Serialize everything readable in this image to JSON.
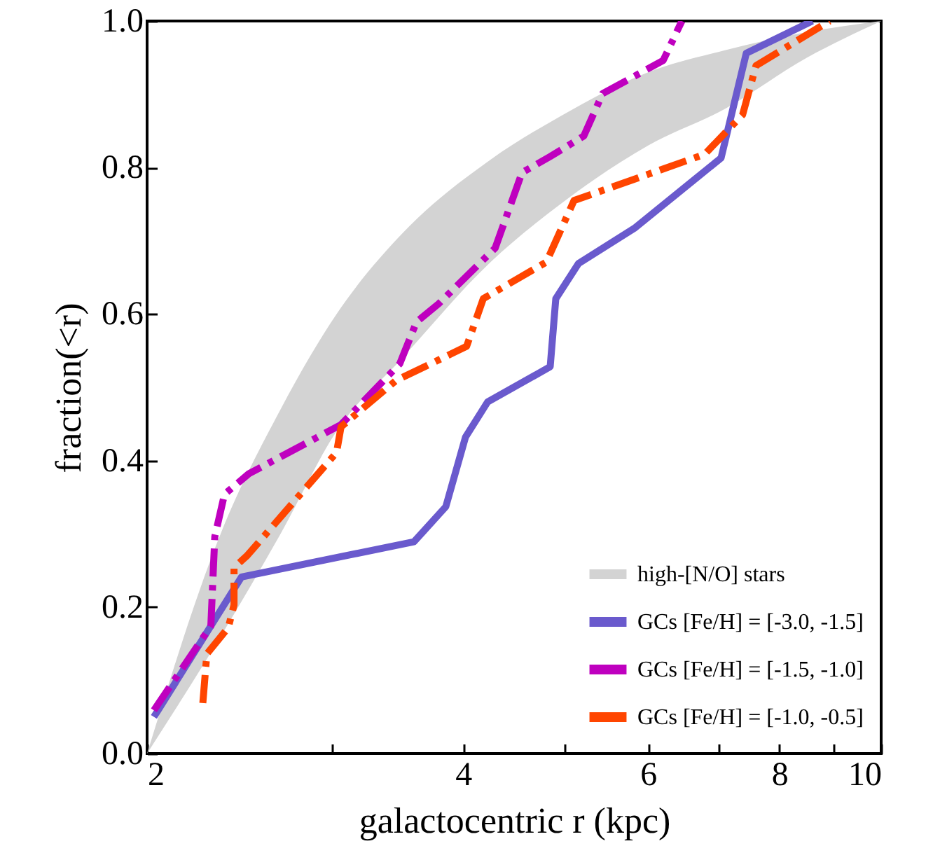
{
  "chart_data": {
    "type": "line",
    "xlabel": "galactocentric r (kpc)",
    "ylabel": "fraction(<r)",
    "log": "x",
    "xlim": [
      2,
      10
    ],
    "xticks": [
      2,
      {
        "value": 3,
        "label": null
      },
      4,
      {
        "value": 5,
        "label": null
      },
      6,
      {
        "value": 7,
        "label": null
      },
      8,
      {
        "value": 9,
        "label": null
      },
      10
    ],
    "ylim": [
      0,
      1
    ],
    "yticks": [
      {
        "value": 0,
        "label": "0.0"
      },
      0.2,
      0.4,
      0.6,
      0.8,
      {
        "value": 1,
        "label": "1.0"
      }
    ],
    "grid": false,
    "legend": "bottom right",
    "series": [
      {
        "name": "high-[N/O] stars",
        "type": "area",
        "color": "#d3d3d3",
        "x": [
          2,
          2.35,
          2.68,
          3.03,
          3.5,
          4.24,
          4.95,
          6,
          7.1,
          8.5,
          10
        ],
        "values": [
          null,
          null,
          null,
          null,
          null,
          null,
          null,
          null,
          null,
          null,
          null
        ],
        "lower": [
          0,
          0.16,
          0.3,
          0.44,
          0.54,
          0.67,
          0.75,
          0.83,
          0.88,
          0.95,
          1
        ],
        "upper": [
          0,
          0.3,
          0.47,
          0.6,
          0.71,
          0.81,
          0.87,
          0.93,
          0.96,
          0.985,
          1
        ]
      },
      {
        "name": "GCs [Fe/H] = [-3.0, -1.5]",
        "line_style": "solid",
        "color": "#6a5acd",
        "x": [
          2.03,
          2.46,
          3.59,
          3.85,
          4.02,
          4.22,
          4.84,
          4.9,
          5.15,
          5.82,
          7.04,
          7.44,
          8.6
        ],
        "values": [
          0.05,
          0.241,
          0.289,
          0.337,
          0.432,
          0.48,
          0.528,
          0.621,
          0.669,
          0.717,
          0.813,
          0.956,
          1.0
        ]
      },
      {
        "name": "GCs [Fe/H] = [-1.5, -1.0]",
        "line_style": "dashed",
        "color": "#bf00bf",
        "x": [
          2.03,
          2.3,
          2.32,
          2.37,
          2.5,
          3.06,
          3.48,
          3.61,
          3.79,
          4.29,
          4.55,
          4.84,
          5.21,
          5.43,
          6.2,
          6.46
        ],
        "values": [
          0.059,
          0.174,
          0.296,
          0.354,
          0.382,
          0.449,
          0.532,
          0.589,
          0.614,
          0.69,
          0.793,
          0.815,
          0.843,
          0.901,
          0.946,
          1.0
        ]
      },
      {
        "name": "GCs [Fe/H] = [-1.0, -0.5]",
        "line_style": "dashed",
        "color": "#ff4500",
        "x": [
          2.26,
          2.28,
          2.39,
          2.42,
          2.42,
          2.49,
          3.03,
          3.06,
          3.19,
          3.45,
          4.03,
          4.18,
          4.8,
          5.1,
          6.79,
          7.38,
          7.6,
          8.93
        ],
        "values": [
          0.069,
          0.136,
          0.172,
          0.203,
          0.254,
          0.27,
          0.411,
          0.446,
          0.468,
          0.509,
          0.556,
          0.621,
          0.671,
          0.755,
          0.818,
          0.872,
          0.939,
          1.0
        ]
      }
    ]
  }
}
